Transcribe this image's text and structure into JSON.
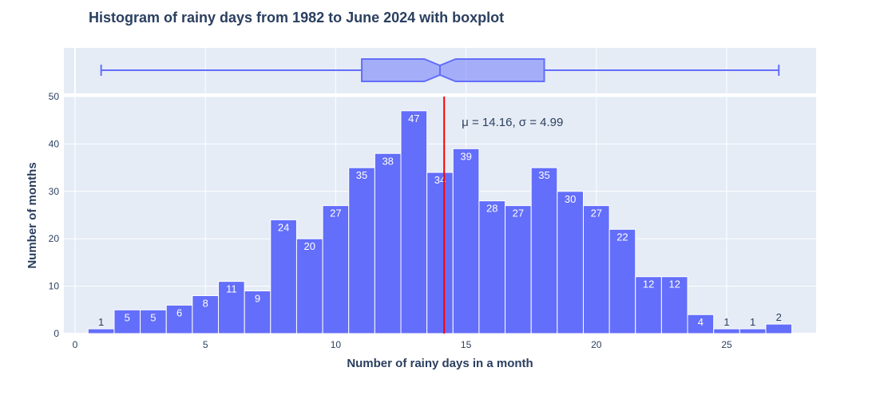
{
  "chart_data": {
    "type": "histogram",
    "title": "Histogram of rainy days from 1982 to June 2024 with boxplot",
    "xlabel": "Number of rainy days in a month",
    "ylabel": "Number of months",
    "xlim": [
      -0.5,
      28.3
    ],
    "ylim": [
      0,
      50
    ],
    "x_ticks": [
      0,
      5,
      10,
      15,
      20,
      25
    ],
    "y_ticks": [
      0,
      10,
      20,
      30,
      40,
      50
    ],
    "bar_color": "#636efa",
    "bins": [
      {
        "x0": 0.5,
        "x1": 1.5,
        "count": 1
      },
      {
        "x0": 1.5,
        "x1": 2.5,
        "count": 5
      },
      {
        "x0": 2.5,
        "x1": 3.5,
        "count": 5
      },
      {
        "x0": 3.5,
        "x1": 4.5,
        "count": 6
      },
      {
        "x0": 4.5,
        "x1": 5.5,
        "count": 8
      },
      {
        "x0": 5.5,
        "x1": 6.5,
        "count": 11
      },
      {
        "x0": 6.5,
        "x1": 7.5,
        "count": 9
      },
      {
        "x0": 7.5,
        "x1": 8.5,
        "count": 24
      },
      {
        "x0": 8.5,
        "x1": 9.5,
        "count": 20
      },
      {
        "x0": 9.5,
        "x1": 10.5,
        "count": 27
      },
      {
        "x0": 10.5,
        "x1": 11.5,
        "count": 35
      },
      {
        "x0": 11.5,
        "x1": 12.5,
        "count": 38
      },
      {
        "x0": 12.5,
        "x1": 13.5,
        "count": 47
      },
      {
        "x0": 13.5,
        "x1": 14.5,
        "count": 34
      },
      {
        "x0": 14.5,
        "x1": 15.5,
        "count": 39
      },
      {
        "x0": 15.5,
        "x1": 16.5,
        "count": 28
      },
      {
        "x0": 16.5,
        "x1": 17.5,
        "count": 27
      },
      {
        "x0": 17.5,
        "x1": 18.5,
        "count": 35
      },
      {
        "x0": 18.5,
        "x1": 19.5,
        "count": 30
      },
      {
        "x0": 19.5,
        "x1": 20.5,
        "count": 27
      },
      {
        "x0": 20.5,
        "x1": 21.5,
        "count": 22
      },
      {
        "x0": 21.5,
        "x1": 22.5,
        "count": 12
      },
      {
        "x0": 22.5,
        "x1": 23.5,
        "count": 12
      },
      {
        "x0": 23.5,
        "x1": 24.5,
        "count": 4
      },
      {
        "x0": 24.5,
        "x1": 25.5,
        "count": 1
      },
      {
        "x0": 25.5,
        "x1": 26.5,
        "count": 1
      },
      {
        "x0": 26.5,
        "x1": 27.5,
        "count": 2
      }
    ],
    "mean_line": {
      "x": 14.16,
      "color": "#ff0000"
    },
    "annotation": "μ = 14.16, σ = 4.99",
    "boxplot": {
      "min": 1,
      "q1": 11,
      "median": 14,
      "q3": 18,
      "max": 27,
      "notch_low": 13.4,
      "notch_high": 14.6,
      "color": "#636efa"
    },
    "grid": true,
    "background": "#e5ecf6"
  }
}
